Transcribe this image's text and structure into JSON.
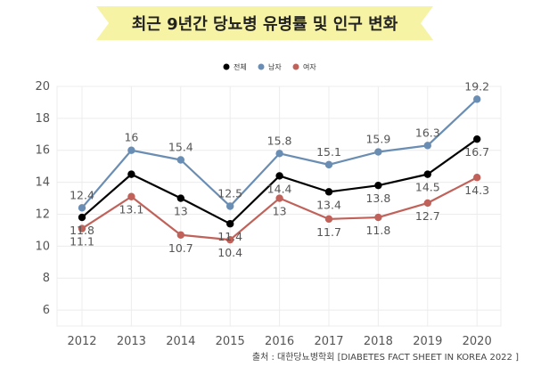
{
  "chart_data": {
    "type": "line",
    "title": "최근 9년간 당뇨병 유병률 및 인구 변화",
    "categories": [
      "2012",
      "2013",
      "2014",
      "2015",
      "2016",
      "2017",
      "2018",
      "2019",
      "2020"
    ],
    "series": [
      {
        "name": "전체",
        "color": "#000000",
        "values": [
          11.8,
          14.5,
          13.0,
          11.4,
          14.4,
          13.4,
          13.8,
          14.5,
          16.7
        ]
      },
      {
        "name": "남자",
        "color": "#6a8db3",
        "values": [
          12.4,
          16.0,
          15.4,
          12.5,
          15.8,
          15.1,
          15.9,
          16.3,
          19.2
        ]
      },
      {
        "name": "여자",
        "color": "#c0625a",
        "values": [
          11.1,
          13.1,
          10.7,
          10.4,
          13.0,
          11.7,
          11.8,
          12.7,
          14.3
        ]
      }
    ],
    "data_labels": {
      "전체": [
        "11.8",
        "",
        "13",
        "11.4",
        "14.4",
        "13.4",
        "13.8",
        "14.5",
        "16.7"
      ],
      "남자": [
        "12.4",
        "16",
        "15.4",
        "12.5",
        "15.8",
        "15.1",
        "15.9",
        "16.3",
        "19.2"
      ],
      "여자": [
        "11.1",
        "13.1",
        "10.7",
        "10.4",
        "13",
        "11.7",
        "11.8",
        "12.7",
        "14.3"
      ]
    },
    "yticks": [
      "6",
      "8",
      "10",
      "12",
      "14",
      "16",
      "18",
      "20"
    ],
    "ylim": [
      5,
      20
    ],
    "xlabel": "",
    "ylabel": "",
    "legend_position": "top-center",
    "grid": true,
    "source": "출처 : 대한당뇨병학회 [DIABETES FACT SHEET IN KOREA 2022 ]"
  },
  "colors": {
    "title_banner": "#f7f3a4",
    "grid": "#ececec",
    "text": "#555555"
  }
}
